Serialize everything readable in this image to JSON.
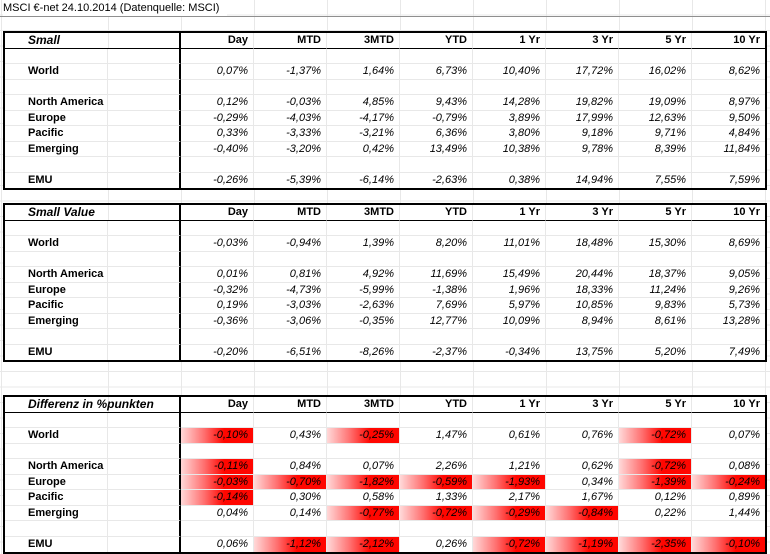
{
  "title": "MSCI €-net 24.10.2014 (Datenquelle: MSCI)",
  "columns": [
    "Day",
    "MTD",
    "3MTD",
    "YTD",
    "1 Yr",
    "3 Yr",
    "5 Yr",
    "10 Yr"
  ],
  "colors": {
    "highlight_red": "#ff0000",
    "gridline": "#e8e8e8",
    "section_border": "#000000",
    "title_rule": "#8f8f8f"
  },
  "sections": [
    {
      "label": "Small",
      "highlight_negatives": false,
      "rows": [
        {
          "label": "World",
          "values": [
            "0,07%",
            "-1,37%",
            "1,64%",
            "6,73%",
            "10,40%",
            "17,72%",
            "16,02%",
            "8,62%"
          ]
        },
        {
          "label": "North America",
          "values": [
            "0,12%",
            "-0,03%",
            "4,85%",
            "9,43%",
            "14,28%",
            "19,82%",
            "19,09%",
            "8,97%"
          ]
        },
        {
          "label": "Europe",
          "values": [
            "-0,29%",
            "-4,03%",
            "-4,17%",
            "-0,79%",
            "3,89%",
            "17,99%",
            "12,63%",
            "9,50%"
          ]
        },
        {
          "label": "Pacific",
          "values": [
            "0,33%",
            "-3,33%",
            "-3,21%",
            "6,36%",
            "3,80%",
            "9,18%",
            "9,71%",
            "4,84%"
          ]
        },
        {
          "label": "Emerging",
          "values": [
            "-0,40%",
            "-3,20%",
            "0,42%",
            "13,49%",
            "10,38%",
            "9,78%",
            "8,39%",
            "11,84%"
          ]
        },
        {
          "label": "EMU",
          "values": [
            "-0,26%",
            "-5,39%",
            "-6,14%",
            "-2,63%",
            "0,38%",
            "14,94%",
            "7,55%",
            "7,59%"
          ]
        }
      ]
    },
    {
      "label": "Small Value",
      "highlight_negatives": false,
      "rows": [
        {
          "label": "World",
          "values": [
            "-0,03%",
            "-0,94%",
            "1,39%",
            "8,20%",
            "11,01%",
            "18,48%",
            "15,30%",
            "8,69%"
          ]
        },
        {
          "label": "North America",
          "values": [
            "0,01%",
            "0,81%",
            "4,92%",
            "11,69%",
            "15,49%",
            "20,44%",
            "18,37%",
            "9,05%"
          ]
        },
        {
          "label": "Europe",
          "values": [
            "-0,32%",
            "-4,73%",
            "-5,99%",
            "-1,38%",
            "1,96%",
            "18,33%",
            "11,24%",
            "9,26%"
          ]
        },
        {
          "label": "Pacific",
          "values": [
            "0,19%",
            "-3,03%",
            "-2,63%",
            "7,69%",
            "5,97%",
            "10,85%",
            "9,83%",
            "5,73%"
          ]
        },
        {
          "label": "Emerging",
          "values": [
            "-0,36%",
            "-3,06%",
            "-0,35%",
            "12,77%",
            "10,09%",
            "8,94%",
            "8,61%",
            "13,28%"
          ]
        },
        {
          "label": "EMU",
          "values": [
            "-0,20%",
            "-6,51%",
            "-8,26%",
            "-2,37%",
            "-0,34%",
            "13,75%",
            "5,20%",
            "7,49%"
          ]
        }
      ]
    },
    {
      "label": "Differenz in %punkten",
      "highlight_negatives": true,
      "rows": [
        {
          "label": "World",
          "values": [
            "-0,10%",
            "0,43%",
            "-0,25%",
            "1,47%",
            "0,61%",
            "0,76%",
            "-0,72%",
            "0,07%"
          ]
        },
        {
          "label": "North America",
          "values": [
            "-0,11%",
            "0,84%",
            "0,07%",
            "2,26%",
            "1,21%",
            "0,62%",
            "-0,72%",
            "0,08%"
          ]
        },
        {
          "label": "Europe",
          "values": [
            "-0,03%",
            "-0,70%",
            "-1,82%",
            "-0,59%",
            "-1,93%",
            "0,34%",
            "-1,39%",
            "-0,24%"
          ]
        },
        {
          "label": "Pacific",
          "values": [
            "-0,14%",
            "0,30%",
            "0,58%",
            "1,33%",
            "2,17%",
            "1,67%",
            "0,12%",
            "0,89%"
          ]
        },
        {
          "label": "Emerging",
          "values": [
            "0,04%",
            "0,14%",
            "-0,77%",
            "-0,72%",
            "-0,29%",
            "-0,84%",
            "0,22%",
            "1,44%"
          ]
        },
        {
          "label": "EMU",
          "values": [
            "0,06%",
            "-1,12%",
            "-2,12%",
            "0,26%",
            "-0,72%",
            "-1,19%",
            "-2,35%",
            "-0,10%"
          ]
        }
      ]
    }
  ]
}
